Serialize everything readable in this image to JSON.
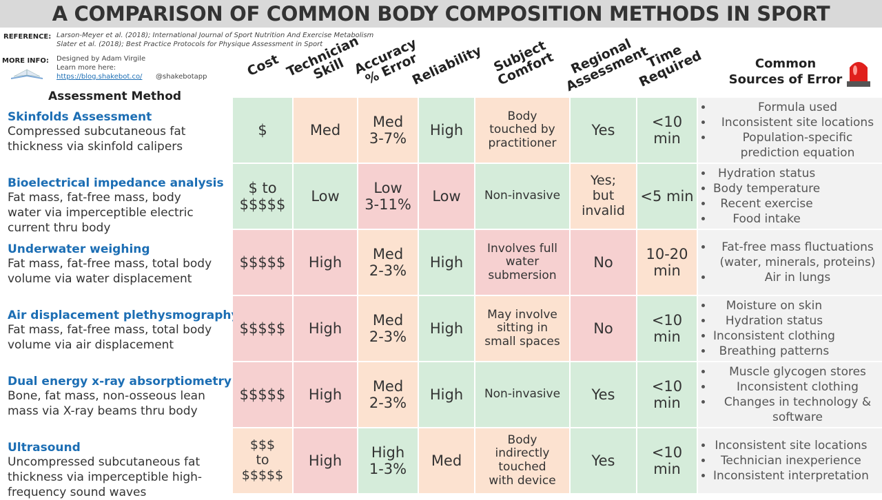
{
  "header": {
    "title": "A COMPARISON OF COMMON BODY COMPOSITION METHODS IN SPORT",
    "reference_label": "REFERENCE:",
    "references": [
      "Larson-Meyer et al. (2018); International Journal of Sport Nutrition And Exercise Metabolism",
      "Slater et al. (2018); Best Practice Protocols for Physique Assessment in Sport"
    ],
    "more_info_label": "MORE INFO:",
    "more_info": [
      "Designed by Adam Virgile",
      "Learn more here:"
    ],
    "link": "https://blog.shakebot.co/",
    "handle": "@shakebotapp"
  },
  "table": {
    "method_header": "Assessment Method",
    "columns": [
      {
        "lines": [
          "Cost"
        ]
      },
      {
        "lines": [
          "Technician",
          "Skill"
        ]
      },
      {
        "lines": [
          "Accuracy",
          "% Error"
        ]
      },
      {
        "lines": [
          "Reliability"
        ]
      },
      {
        "lines": [
          "Subject",
          "Comfort"
        ]
      },
      {
        "lines": [
          "Regional",
          "Assessment"
        ]
      },
      {
        "lines": [
          "Time",
          "Required"
        ]
      }
    ],
    "errors_header": [
      "Common",
      "Sources of Error"
    ],
    "colors": {
      "green": "#d5ecda",
      "orange": "#fce2d0",
      "red": "#f6d0d0"
    },
    "rows": [
      {
        "name": "Skinfolds Assessment",
        "description": [
          "Compressed subcutaneous fat",
          "thickness via skinfold calipers"
        ],
        "cells": [
          {
            "lines": [
              "$"
            ],
            "color": "green"
          },
          {
            "lines": [
              "Med"
            ],
            "color": "orange"
          },
          {
            "lines": [
              "Med",
              "3-7%"
            ],
            "color": "orange"
          },
          {
            "lines": [
              "High"
            ],
            "color": "green"
          },
          {
            "lines": [
              "Body",
              "touched by",
              "practitioner"
            ],
            "color": "orange"
          },
          {
            "lines": [
              "Yes"
            ],
            "color": "green"
          },
          {
            "lines": [
              "<10",
              "min"
            ],
            "color": "green"
          }
        ],
        "errors": [
          "Formula used",
          "Inconsistent site locations",
          "Population-specific prediction equation"
        ]
      },
      {
        "name": "Bioelectrical impedance analysis",
        "description": [
          "Fat mass, fat-free mass, body",
          "water via imperceptible electric",
          "current thru body"
        ],
        "cells": [
          {
            "lines": [
              "$ to",
              "$$$$$"
            ],
            "color": "green"
          },
          {
            "lines": [
              "Low"
            ],
            "color": "green"
          },
          {
            "lines": [
              "Low",
              "3-11%"
            ],
            "color": "red"
          },
          {
            "lines": [
              "Low"
            ],
            "color": "red"
          },
          {
            "lines": [
              "Non-invasive"
            ],
            "color": "green"
          },
          {
            "lines": [
              "Yes;",
              "but",
              "invalid"
            ],
            "color": "orange"
          },
          {
            "lines": [
              "<5 min"
            ],
            "color": "green"
          }
        ],
        "errors": [
          "Hydration status",
          "Body temperature",
          "Recent exercise",
          "Food intake"
        ]
      },
      {
        "name": "Underwater weighing",
        "description": [
          "Fat mass, fat-free mass, total body",
          "volume via water displacement"
        ],
        "cells": [
          {
            "lines": [
              "$$$$$"
            ],
            "color": "red"
          },
          {
            "lines": [
              "High"
            ],
            "color": "red"
          },
          {
            "lines": [
              "Med",
              "2-3%"
            ],
            "color": "orange"
          },
          {
            "lines": [
              "High"
            ],
            "color": "green"
          },
          {
            "lines": [
              "Involves full",
              "water",
              "submersion"
            ],
            "color": "red"
          },
          {
            "lines": [
              "No"
            ],
            "color": "red"
          },
          {
            "lines": [
              "10-20",
              "min"
            ],
            "color": "orange"
          }
        ],
        "errors": [
          "Fat-free mass fluctuations (water, minerals, proteins)",
          "Air in lungs"
        ]
      },
      {
        "name": "Air displacement plethysmography",
        "description": [
          "Fat mass, fat-free mass, total body",
          "volume via air displacement"
        ],
        "cells": [
          {
            "lines": [
              "$$$$$"
            ],
            "color": "red"
          },
          {
            "lines": [
              "High"
            ],
            "color": "red"
          },
          {
            "lines": [
              "Med",
              "2-3%"
            ],
            "color": "orange"
          },
          {
            "lines": [
              "High"
            ],
            "color": "green"
          },
          {
            "lines": [
              "May involve",
              "sitting in",
              "small spaces"
            ],
            "color": "orange"
          },
          {
            "lines": [
              "No"
            ],
            "color": "red"
          },
          {
            "lines": [
              "<10",
              "min"
            ],
            "color": "green"
          }
        ],
        "errors": [
          "Moisture on skin",
          "Hydration status",
          "Inconsistent clothing",
          "Breathing patterns"
        ]
      },
      {
        "name": "Dual energy x-ray absorptiometry",
        "description": [
          "Bone, fat mass, non-osseous lean",
          "mass via X-ray beams thru body"
        ],
        "cells": [
          {
            "lines": [
              "$$$$$"
            ],
            "color": "red"
          },
          {
            "lines": [
              "High"
            ],
            "color": "red"
          },
          {
            "lines": [
              "Med",
              "2-3%"
            ],
            "color": "orange"
          },
          {
            "lines": [
              "High"
            ],
            "color": "green"
          },
          {
            "lines": [
              "Non-invasive"
            ],
            "color": "green"
          },
          {
            "lines": [
              "Yes"
            ],
            "color": "green"
          },
          {
            "lines": [
              "<10",
              "min"
            ],
            "color": "green"
          }
        ],
        "errors": [
          "Muscle glycogen stores",
          "Inconsistent clothing",
          "Changes in technology & software"
        ]
      },
      {
        "name": "Ultrasound",
        "description": [
          "Uncompressed subcutaneous fat",
          "thickness via imperceptible high-",
          "frequency sound waves"
        ],
        "cells": [
          {
            "lines": [
              "$$$",
              "to",
              "$$$$$"
            ],
            "color": "orange"
          },
          {
            "lines": [
              "High"
            ],
            "color": "red"
          },
          {
            "lines": [
              "High",
              "1-3%"
            ],
            "color": "green"
          },
          {
            "lines": [
              "Med"
            ],
            "color": "orange"
          },
          {
            "lines": [
              "Body",
              "indirectly",
              "touched",
              "with device"
            ],
            "color": "orange"
          },
          {
            "lines": [
              "Yes"
            ],
            "color": "green"
          },
          {
            "lines": [
              "<10",
              "min"
            ],
            "color": "green"
          }
        ],
        "errors": [
          "Inconsistent site locations",
          "Technician inexperience",
          "Inconsistent interpretation"
        ]
      }
    ]
  }
}
